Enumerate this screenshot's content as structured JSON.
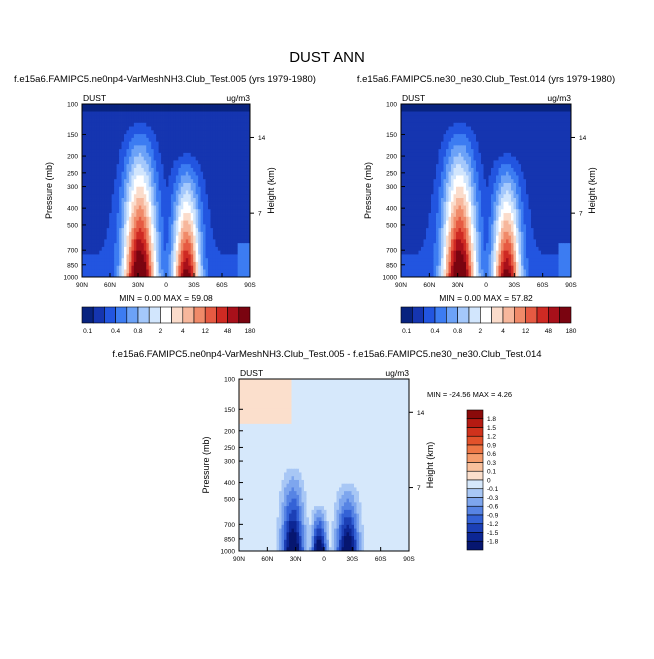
{
  "figure": {
    "title": "DUST ANN"
  },
  "chart_data": [
    {
      "type": "heatmap",
      "title": "f.e15a6.FAMIPC5.ne0np4-VarMeshNH3.Club_Test.005 (yrs 1979-1980)",
      "variable_label": "DUST",
      "units_label": "ug/m3",
      "ylabel": "Pressure (mb)",
      "right_label": "Height (km)",
      "x_ticks": [
        "90N",
        "60N",
        "30N",
        "0",
        "30S",
        "60S",
        "90S"
      ],
      "y_ticks": [
        "100",
        "150",
        "200",
        "250",
        "300",
        "400",
        "500",
        "700",
        "850",
        "1000"
      ],
      "right_ticks": [
        "14",
        "7"
      ],
      "stats_text": "MIN =  0.00  MAX =  59.08",
      "stats": {
        "min": 0.0,
        "max": 59.08
      },
      "colorbar": {
        "labels": [
          "0.1",
          "0.4",
          "0.8",
          "2",
          "4",
          "12",
          "48",
          "180"
        ],
        "colors": [
          "#08237f",
          "#1535b0",
          "#2255e0",
          "#3c7cf2",
          "#6ca2f7",
          "#a4c8fb",
          "#d2e6fd",
          "#ffffff",
          "#fbdccb",
          "#f7b79c",
          "#f08a69",
          "#e65a42",
          "#cf2a23",
          "#a8101a",
          "#7a0410"
        ]
      }
    },
    {
      "type": "heatmap",
      "title": "f.e15a6.FAMIPC5.ne30_ne30.Club_Test.014 (yrs 1979-1980)",
      "variable_label": "DUST",
      "units_label": "ug/m3",
      "ylabel": "Pressure (mb)",
      "right_label": "Height (km)",
      "x_ticks": [
        "90N",
        "60N",
        "30N",
        "0",
        "30S",
        "60S",
        "90S"
      ],
      "y_ticks": [
        "100",
        "150",
        "200",
        "250",
        "300",
        "400",
        "500",
        "700",
        "850",
        "1000"
      ],
      "right_ticks": [
        "14",
        "7"
      ],
      "stats_text": "MIN =  0.00  MAX =  57.82",
      "stats": {
        "min": 0.0,
        "max": 57.82
      },
      "colorbar": {
        "labels": [
          "0.1",
          "0.4",
          "0.8",
          "2",
          "4",
          "12",
          "48",
          "180"
        ],
        "colors": [
          "#08237f",
          "#1535b0",
          "#2255e0",
          "#3c7cf2",
          "#6ca2f7",
          "#a4c8fb",
          "#d2e6fd",
          "#ffffff",
          "#fbdccb",
          "#f7b79c",
          "#f08a69",
          "#e65a42",
          "#cf2a23",
          "#a8101a",
          "#7a0410"
        ]
      }
    },
    {
      "type": "heatmap",
      "title": "f.e15a6.FAMIPC5.ne0np4-VarMeshNH3.Club_Test.005 - f.e15a6.FAMIPC5.ne30_ne30.Club_Test.014",
      "variable_label": "DUST",
      "units_label": "ug/m3",
      "ylabel": "Pressure (mb)",
      "right_label": "Height (km)",
      "x_ticks": [
        "90N",
        "60N",
        "30N",
        "0",
        "30S",
        "60S",
        "90S"
      ],
      "y_ticks": [
        "100",
        "150",
        "200",
        "250",
        "300",
        "400",
        "500",
        "700",
        "850",
        "1000"
      ],
      "right_ticks": [
        "14",
        "7"
      ],
      "stats_text": "MIN = -24.56  MAX =  4.26",
      "stats": {
        "min": -24.56,
        "max": 4.26
      },
      "colorbar": {
        "labels": [
          "1.8",
          "1.5",
          "1.2",
          "0.9",
          "0.6",
          "0.3",
          "0.1",
          "0",
          "-0.1",
          "-0.3",
          "-0.6",
          "-0.9",
          "-1.2",
          "-1.5",
          "-1.8"
        ],
        "colors": [
          "#8b0a0a",
          "#b51a12",
          "#d0321c",
          "#e2522b",
          "#ee7746",
          "#f59c6c",
          "#f9c09c",
          "#fbdfcc",
          "#d6e8fb",
          "#a8c7f5",
          "#7ea6ee",
          "#5784e4",
          "#3462d6",
          "#1c40b6",
          "#0c2694",
          "#061670"
        ]
      }
    }
  ]
}
